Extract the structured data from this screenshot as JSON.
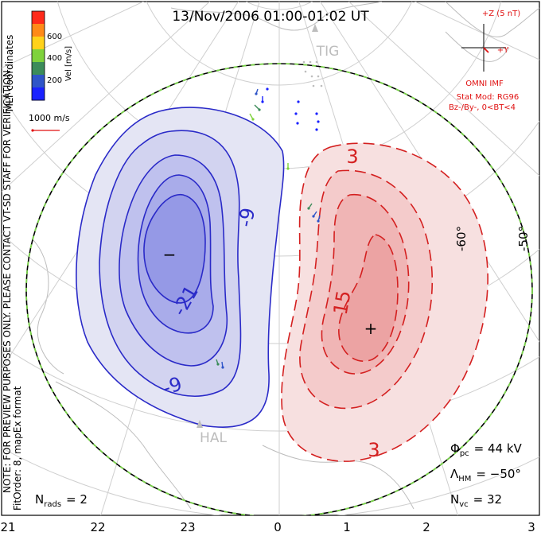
{
  "title": "13/Nov/2006 01:00-01:02 UT",
  "colors": {
    "negative_cell": "#2a2ac8",
    "positive_cell": "#d42020",
    "imf": "#e01010",
    "boundary": "#7ad44a",
    "grid": "#cfcfcf",
    "land": "#bdbdbd"
  },
  "colorbar": {
    "ticks": [
      "600",
      "400",
      "200"
    ],
    "label": "Vel [m/s]",
    "colors": [
      "#ff2a1a",
      "#ff8a18",
      "#ffd21a",
      "#7fd23c",
      "#3c8c5a",
      "#2f55c8",
      "#1a22ff"
    ],
    "max_value": 700
  },
  "coords_label": "MLT coordinates",
  "vector_scale_label": "1000 m/s",
  "side_note": "NOTE: FOR PREVIEW PURPOSES ONLY. PLEASE CONTACT VT-SD STAFF FOR VERIFICATION.",
  "fit_note": "FitOrder: 8, mapEx format",
  "imf": {
    "z_label": "+Z (5 nT)",
    "y_label": "+Y",
    "title": "OMNI IMF",
    "model_line1": "Stat Mod: RG96",
    "model_line2": "Bz-/By-, 0<BT<4"
  },
  "contour_labels": [
    "3",
    "-9",
    "-21",
    "15",
    "-9",
    "3"
  ],
  "extremum_markers": {
    "min": "−",
    "max": "+"
  },
  "latitude_labels": [
    "-60°",
    "-50°"
  ],
  "stations": [
    "TIG",
    "HAL"
  ],
  "stats": {
    "phi_symbol": "Φ",
    "phi_sub": "pc",
    "phi_value": "= 44 kV",
    "lambda_symbol": "Λ",
    "lambda_sub": "HM",
    "lambda_value": "= −50°",
    "nvc_symbol": "N",
    "nvc_sub": "vc",
    "nvc_value": "= 32",
    "nrads_symbol": "N",
    "nrads_sub": "rads",
    "nrads_value": "= 2"
  },
  "mlt_ticks": [
    "21",
    "22",
    "23",
    "0",
    "1",
    "2",
    "3"
  ]
}
